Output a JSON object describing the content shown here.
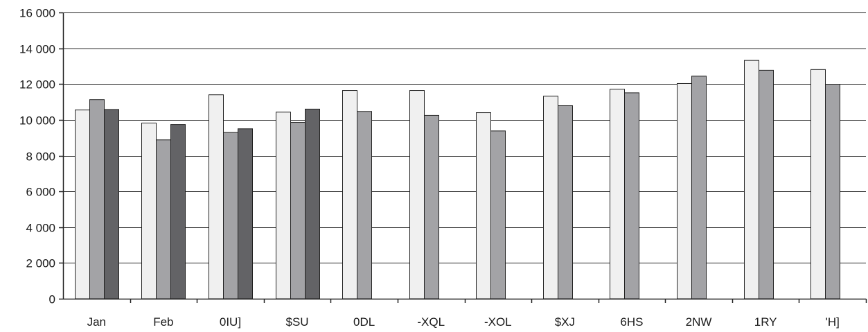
{
  "chart_data": {
    "type": "bar",
    "title": "",
    "xlabel": "",
    "ylabel": "",
    "ylim": [
      0,
      16000
    ],
    "yticks": [
      0,
      2000,
      4000,
      6000,
      8000,
      10000,
      12000,
      14000,
      16000
    ],
    "ytick_labels": [
      "0",
      "2 000",
      "4 000",
      "6 000",
      "8 000",
      "10 000",
      "12 000",
      "14 000",
      "16 000"
    ],
    "grid": true,
    "legend": "none",
    "categories": [
      "Jan",
      "Feb",
      "0IU]",
      "$SU",
      "0DL",
      "-XQL",
      "-XOL",
      "$XJ",
      "6HS",
      "2NW",
      "1RY",
      "'H]"
    ],
    "series": [
      {
        "color": "#f0f0f0",
        "values": [
          10550,
          9820,
          11400,
          10430,
          11640,
          11640,
          10400,
          11320,
          11710,
          12030,
          13320,
          12810
        ]
      },
      {
        "color": "#a3a3a6",
        "values": [
          11130,
          8880,
          9290,
          9860,
          10470,
          10250,
          9380,
          10790,
          11510,
          12440,
          12770,
          11990
        ]
      },
      {
        "color": "#636366",
        "values": [
          10580,
          9740,
          9500,
          10600,
          null,
          null,
          null,
          null,
          null,
          null,
          null,
          null
        ]
      }
    ]
  }
}
